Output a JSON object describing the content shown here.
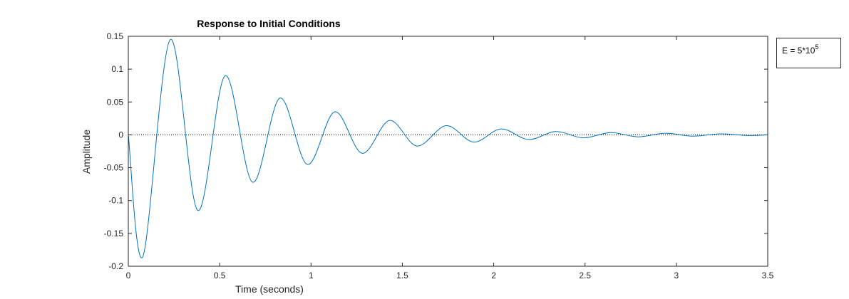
{
  "chart_data": {
    "type": "line",
    "title": "Response to Initial Conditions",
    "xlabel": "Time (seconds)",
    "ylabel": "Amplitude",
    "xlim": [
      0,
      3.5
    ],
    "ylim": [
      -0.2,
      0.15
    ],
    "xticks": [
      0,
      0.5,
      1,
      1.5,
      2,
      2.5,
      3,
      3.5
    ],
    "xtick_labels": [
      "0",
      "0.5",
      "1",
      "1.5",
      "2",
      "2.5",
      "3",
      "3.5"
    ],
    "yticks": [
      -0.2,
      -0.15,
      -0.1,
      -0.05,
      0,
      0.05,
      0.1,
      0.15
    ],
    "ytick_labels": [
      "-0.2",
      "-0.15",
      "-0.1",
      "-0.05",
      "0",
      "0.05",
      "0.1",
      "0.15"
    ],
    "grid": false,
    "zero_line": "dotted",
    "series_color": "#0072BD",
    "series": [
      {
        "x": [
          0,
          0.08,
          0.23,
          0.38,
          0.53,
          0.68,
          0.83,
          0.98,
          1.13,
          1.28,
          1.43,
          1.58,
          1.74,
          1.89,
          2.04,
          2.19,
          2.34,
          2.49,
          2.64,
          2.79,
          2.94,
          3.09,
          3.24,
          3.39,
          3.5
        ],
        "y": [
          0,
          -0.185,
          0.145,
          -0.115,
          0.09,
          -0.072,
          0.056,
          -0.045,
          0.035,
          -0.028,
          0.022,
          -0.017,
          0.014,
          -0.011,
          0.009,
          -0.007,
          0.005,
          -0.0045,
          0.0035,
          -0.003,
          0.0025,
          -0.002,
          0.0015,
          -0.001,
          0
        ]
      }
    ],
    "annotation": {
      "text": "E = 5*10",
      "superscript": "5",
      "location": "outside-top-right"
    }
  }
}
